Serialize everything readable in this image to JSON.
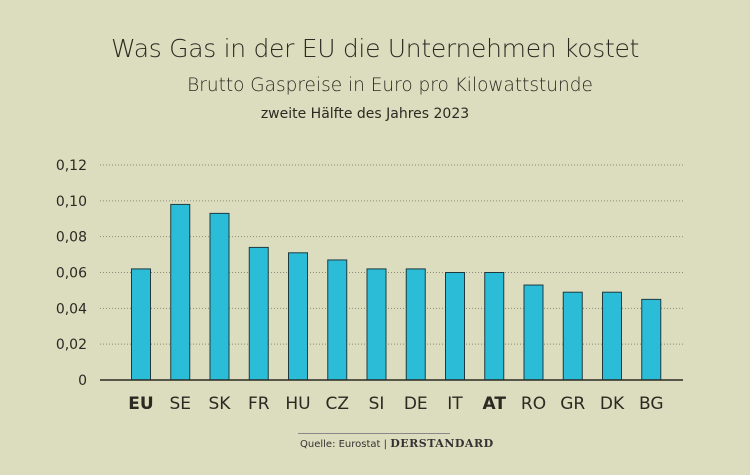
{
  "chart_data": {
    "type": "bar",
    "title": "Was Gas in der EU die Unternehmen kostet",
    "subtitle": "Brutto Gaspreise in Euro pro Kilowattstunde",
    "period": "zweite Hälfte des Jahres 2023",
    "categories": [
      "EU",
      "SE",
      "SK",
      "FR",
      "HU",
      "CZ",
      "SI",
      "DE",
      "IT",
      "AT",
      "RO",
      "GR",
      "DK",
      "BG"
    ],
    "bold_categories": [
      "EU",
      "AT"
    ],
    "values": [
      0.062,
      0.098,
      0.093,
      0.074,
      0.071,
      0.067,
      0.062,
      0.062,
      0.06,
      0.06,
      0.053,
      0.049,
      0.049,
      0.045
    ],
    "ylim": [
      0,
      0.12
    ],
    "yticks": [
      0,
      0.02,
      0.04,
      0.06,
      0.08,
      0.1,
      0.12
    ],
    "ytick_labels": [
      "0",
      "0,02",
      "0,04",
      "0,06",
      "0,08",
      "0,10",
      "0,12"
    ],
    "grid": true,
    "xlabel": "",
    "ylabel": "",
    "colors": {
      "bar": "#2bbdd8",
      "bar_stroke": "#1d3b3f",
      "background": "#dcdcbe"
    }
  },
  "source": {
    "label": "Quelle: Eurostat",
    "brand": "DERSTANDARD"
  }
}
